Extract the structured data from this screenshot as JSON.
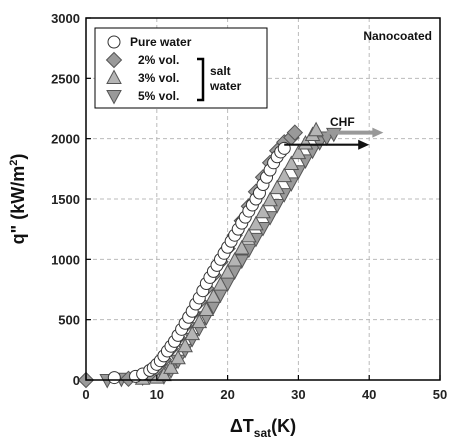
{
  "chart_data": {
    "type": "scatter",
    "title": "",
    "xlabel": "ΔT",
    "xlabel_sub": "sat",
    "xlabel_unit": "(K)",
    "ylabel": "q\" (kW/m",
    "ylabel_sup": "2",
    "ylabel_close": ")",
    "xlim": [
      0,
      50
    ],
    "ylim": [
      0,
      3000
    ],
    "xticks": [
      "0",
      "10",
      "20",
      "30",
      "40",
      "50"
    ],
    "yticks": [
      "0",
      "500",
      "1000",
      "1500",
      "2000",
      "2500",
      "3000"
    ],
    "grid": true,
    "grid_style": "dashed",
    "legend_position": "top-left",
    "annotation_top_right": "Nanocoated",
    "bracket_label_line1": "salt",
    "bracket_label_line2": "water",
    "chf_label": "CHF",
    "series": [
      {
        "name": "Pure water",
        "marker": "circle",
        "color": "#ffffff",
        "x": [
          4,
          7,
          8,
          9,
          9.5,
          10,
          10.5,
          11,
          11.5,
          12,
          12.5,
          13,
          13.5,
          14,
          14.5,
          15,
          15.5,
          16,
          16.5,
          17,
          17.5,
          18,
          18.5,
          19,
          19.5,
          20,
          20.5,
          21,
          21.5,
          22,
          22.5,
          23,
          23.5,
          24,
          24.5,
          25,
          25.5,
          26,
          26.5,
          27,
          27.5,
          28
        ],
        "y": [
          20,
          30,
          50,
          80,
          100,
          130,
          160,
          200,
          240,
          280,
          320,
          370,
          420,
          470,
          520,
          570,
          630,
          680,
          740,
          800,
          850,
          900,
          950,
          1000,
          1050,
          1100,
          1150,
          1200,
          1250,
          1300,
          1350,
          1400,
          1450,
          1500,
          1550,
          1620,
          1680,
          1740,
          1800,
          1850,
          1890,
          1920
        ]
      },
      {
        "name": "2% vol.",
        "marker": "diamond",
        "color": "#999999",
        "x": [
          0,
          6,
          9,
          10,
          11,
          12,
          13,
          14,
          15,
          16,
          17,
          18,
          19,
          20,
          21,
          22,
          23,
          24,
          25,
          26,
          27,
          28,
          29,
          29.5
        ],
        "y": [
          0,
          10,
          50,
          100,
          170,
          260,
          350,
          450,
          550,
          650,
          760,
          870,
          980,
          1090,
          1200,
          1320,
          1440,
          1560,
          1680,
          1800,
          1900,
          1970,
          2010,
          2050
        ]
      },
      {
        "name": "3% vol.",
        "marker": "triangle-up",
        "color": "#b5b5b5",
        "x": [
          8,
          10,
          11,
          12,
          13,
          14,
          15,
          16,
          17,
          18,
          19,
          20,
          21,
          22,
          23,
          24,
          25,
          26,
          27,
          28,
          29,
          30,
          31,
          32,
          32.5
        ],
        "y": [
          10,
          20,
          40,
          100,
          180,
          280,
          380,
          480,
          580,
          690,
          790,
          890,
          990,
          1090,
          1190,
          1290,
          1390,
          1490,
          1590,
          1690,
          1790,
          1880,
          1960,
          2030,
          2070
        ]
      },
      {
        "name": "5% vol.",
        "marker": "triangle-down",
        "color": "#999999",
        "x": [
          3,
          5,
          8,
          11,
          12,
          13,
          14,
          15,
          16,
          17,
          18,
          19,
          20,
          21,
          22,
          23,
          24,
          25,
          26,
          27,
          28,
          29,
          30,
          31,
          32,
          33,
          34,
          35
        ],
        "y": [
          0,
          10,
          20,
          30,
          80,
          160,
          250,
          340,
          430,
          520,
          610,
          710,
          800,
          900,
          990,
          1080,
          1170,
          1260,
          1350,
          1450,
          1540,
          1630,
          1730,
          1820,
          1900,
          1970,
          2010,
          2040
        ]
      }
    ],
    "chf_arrows": [
      {
        "color": "#111111",
        "x_start": 28,
        "x_end": 40,
        "y": 1950
      },
      {
        "color": "#999999",
        "x_start": 34,
        "x_end": 42,
        "y": 2050
      }
    ]
  }
}
